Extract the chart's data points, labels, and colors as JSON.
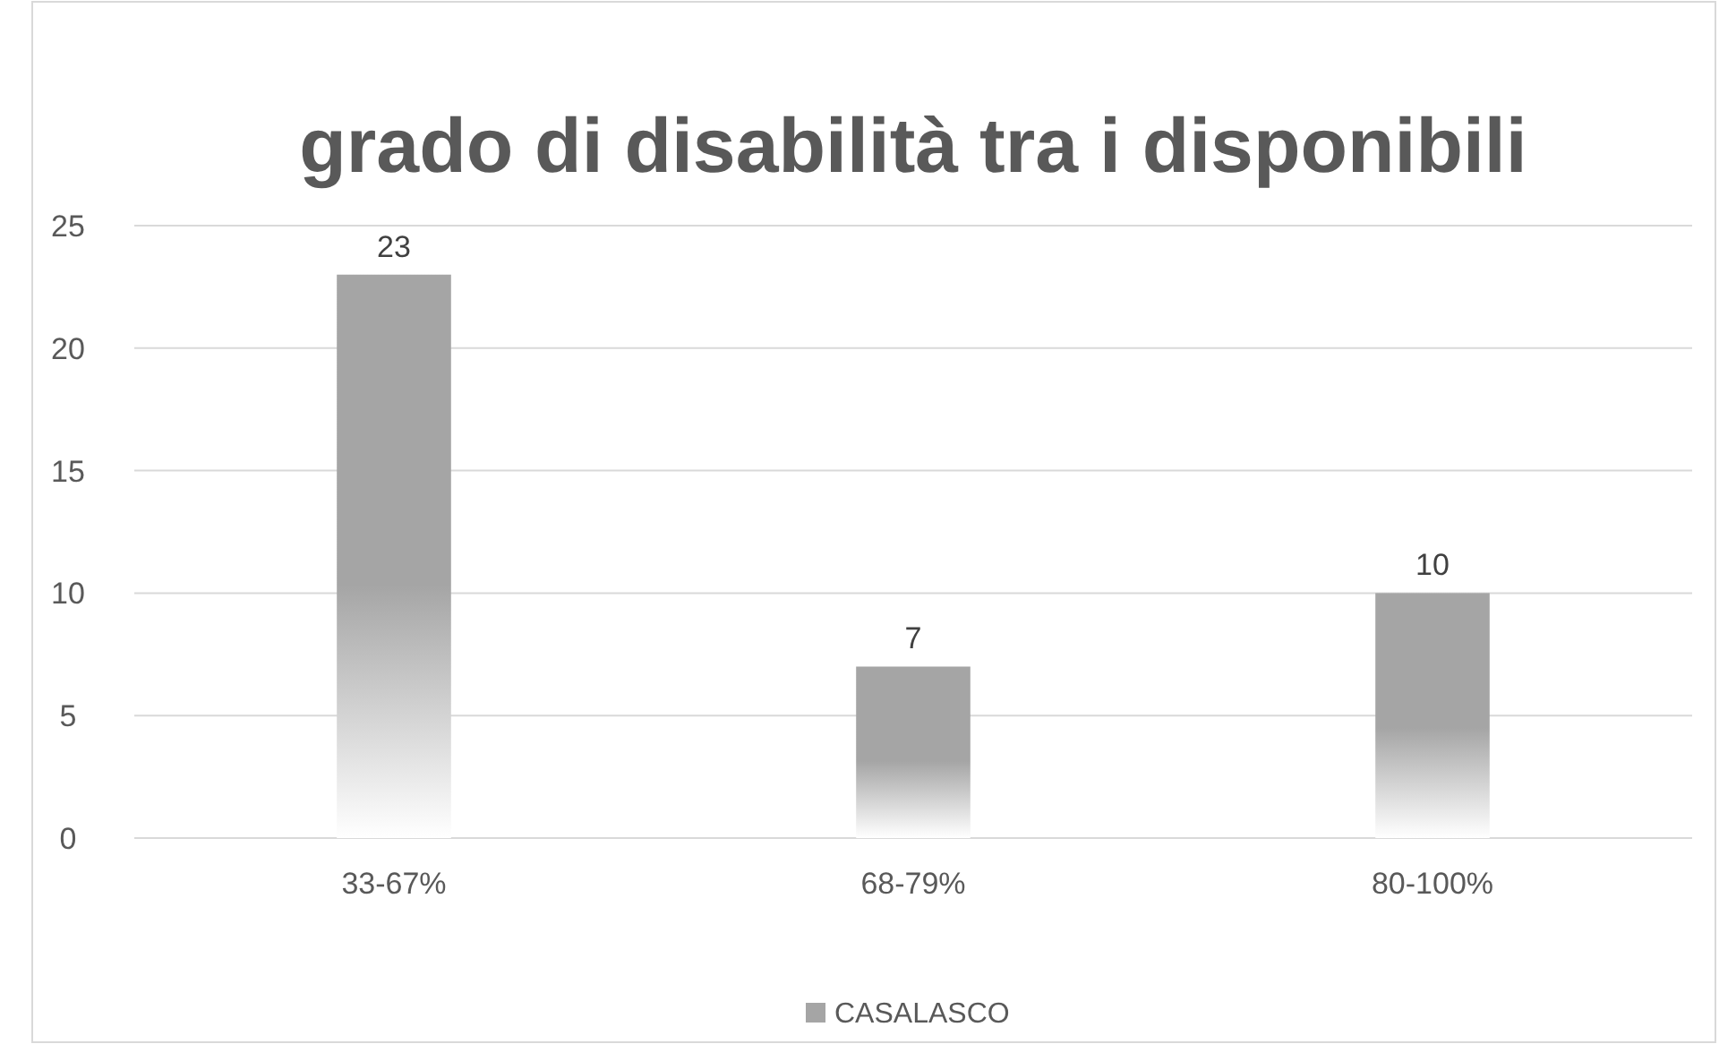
{
  "chart_data": {
    "type": "bar",
    "title": "grado di disabilità tra i disponibili",
    "categories": [
      "33-67%",
      "68-79%",
      "80-100%"
    ],
    "series": [
      {
        "name": "CASALASCO",
        "color": "#a5a5a5",
        "values": [
          23,
          7,
          10
        ]
      }
    ],
    "ylim": [
      0,
      25
    ],
    "yticks": [
      0,
      5,
      10,
      15,
      20,
      25
    ],
    "grid": "y",
    "legend": "bottom",
    "data_labels": true
  }
}
